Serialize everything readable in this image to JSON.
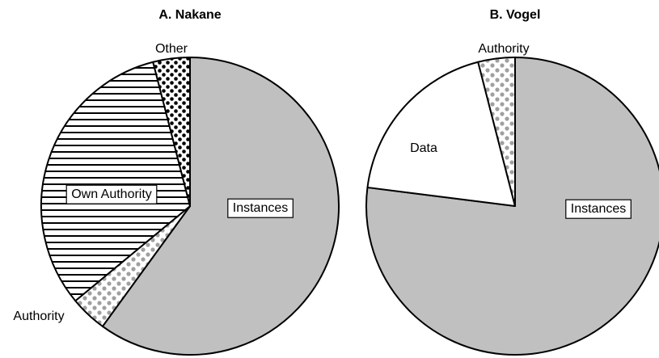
{
  "chart_data": [
    {
      "type": "pie",
      "title": "A.  Nakane",
      "start_angle_deg": 0,
      "direction": "clockwise",
      "slices": [
        {
          "label": "Instances",
          "value": 60,
          "pattern": "solid",
          "color": "#c0c0c0",
          "boxed": true
        },
        {
          "label": "Authority",
          "value": 4,
          "pattern": "gray-dots",
          "color": "#a0a0a0",
          "boxed": false
        },
        {
          "label": "Own Authority",
          "value": 32,
          "pattern": "horizontal-stripes",
          "color": "#000000",
          "boxed": true
        },
        {
          "label": "Other",
          "value": 4,
          "pattern": "black-dots",
          "color": "#000000",
          "boxed": false
        }
      ]
    },
    {
      "type": "pie",
      "title": "B.  Vogel",
      "start_angle_deg": 0,
      "direction": "clockwise",
      "slices": [
        {
          "label": "Instances",
          "value": 77,
          "pattern": "solid",
          "color": "#c0c0c0",
          "boxed": true
        },
        {
          "label": "Data",
          "value": 19,
          "pattern": "solid",
          "color": "#ffffff",
          "boxed": false
        },
        {
          "label": "Authority",
          "value": 4,
          "pattern": "gray-dots",
          "color": "#a0a0a0",
          "boxed": false
        }
      ]
    }
  ]
}
